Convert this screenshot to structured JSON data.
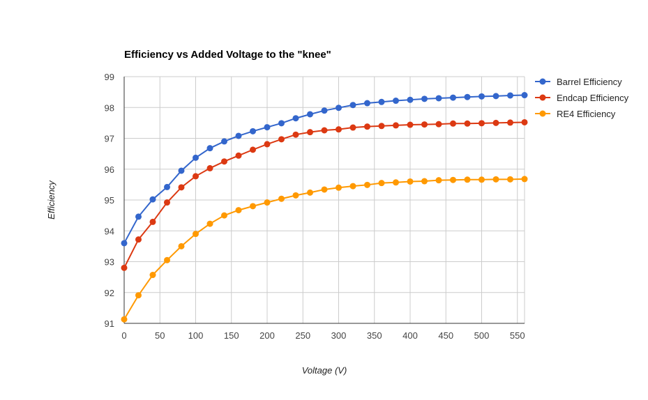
{
  "chart_data": {
    "type": "line",
    "title": "Efficiency vs Added Voltage to the \"knee\"",
    "xlabel": "Voltage (V)",
    "ylabel": "Efficiency",
    "xlim": [
      0,
      560
    ],
    "ylim": [
      91,
      99
    ],
    "x_ticks": [
      0,
      50,
      100,
      150,
      200,
      250,
      300,
      350,
      400,
      450,
      500,
      550
    ],
    "y_ticks": [
      91,
      92,
      93,
      94,
      95,
      96,
      97,
      98,
      99
    ],
    "grid": true,
    "legend_position": "right",
    "x": [
      0,
      20,
      40,
      60,
      80,
      100,
      120,
      140,
      160,
      180,
      200,
      220,
      240,
      260,
      280,
      300,
      320,
      340,
      360,
      380,
      400,
      420,
      440,
      460,
      480,
      500,
      520,
      540,
      560
    ],
    "series": [
      {
        "name": "Barrel Efficiency",
        "color": "#3366cc",
        "values": [
          93.6,
          94.46,
          95.02,
          95.42,
          95.95,
          96.37,
          96.68,
          96.9,
          97.08,
          97.23,
          97.36,
          97.49,
          97.65,
          97.78,
          97.9,
          97.99,
          98.08,
          98.14,
          98.18,
          98.22,
          98.25,
          98.28,
          98.3,
          98.32,
          98.34,
          98.36,
          98.37,
          98.39,
          98.4
        ]
      },
      {
        "name": "Endcap Efficiency",
        "color": "#dc3912",
        "values": [
          92.8,
          93.72,
          94.29,
          94.92,
          95.41,
          95.77,
          96.03,
          96.25,
          96.44,
          96.63,
          96.81,
          96.97,
          97.12,
          97.2,
          97.26,
          97.29,
          97.35,
          97.38,
          97.4,
          97.42,
          97.44,
          97.45,
          97.46,
          97.48,
          97.48,
          97.49,
          97.5,
          97.51,
          97.52
        ]
      },
      {
        "name": "RE4 Efficiency",
        "color": "#ff9900",
        "values": [
          91.13,
          91.91,
          92.57,
          93.05,
          93.5,
          93.9,
          94.23,
          94.5,
          94.67,
          94.8,
          94.92,
          95.04,
          95.15,
          95.24,
          95.34,
          95.4,
          95.45,
          95.49,
          95.55,
          95.57,
          95.6,
          95.61,
          95.64,
          95.65,
          95.66,
          95.66,
          95.67,
          95.67,
          95.68
        ]
      }
    ]
  }
}
